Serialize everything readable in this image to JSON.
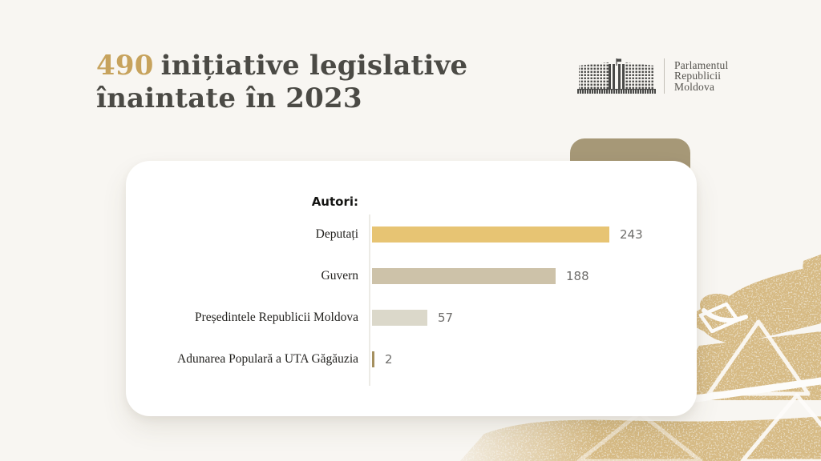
{
  "theme": {
    "bg": "#f8f6f2",
    "title": "#4b4a45",
    "accent": "#c7a35d",
    "tab": "#a69877",
    "card": "#ffffff",
    "valcol": "#6f6e6c",
    "decoration_gold": "#d6ba84"
  },
  "header": {
    "title_number": "490",
    "title_line1": "inițiative legislative",
    "title_line2": "înaintate în 2023"
  },
  "logo": {
    "icon": "parliament-building-icon",
    "lines": [
      "Parlamentul",
      "Republicii",
      "Moldova"
    ]
  },
  "chart_data": {
    "type": "bar",
    "orientation": "horizontal",
    "title": "Autori:",
    "categories": [
      "Deputați",
      "Guvern",
      "Președintele Republicii Moldova",
      "Adunarea Populară a UTA Găgăuzia"
    ],
    "values": [
      243,
      188,
      57,
      2
    ],
    "bar_colors": [
      "#e7c473",
      "#cdc2a9",
      "#dbd8ca",
      "#a5905f"
    ],
    "xlim": [
      0,
      250
    ],
    "grid": false,
    "legend": false
  },
  "decoration": {
    "name": "gold-ballot-hand-texture"
  }
}
